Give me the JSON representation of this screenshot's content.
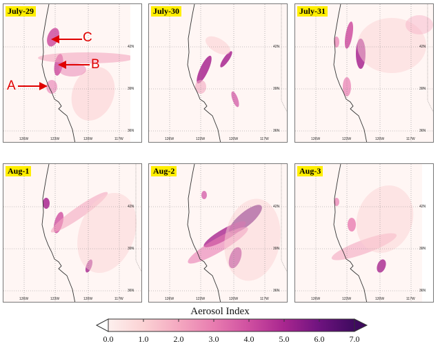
{
  "panels": [
    {
      "date": "July-29"
    },
    {
      "date": "July-30"
    },
    {
      "date": "July-31"
    },
    {
      "date": "Aug-1"
    },
    {
      "date": "Aug-2"
    },
    {
      "date": "Aug-3"
    }
  ],
  "lat_labels": [
    "42N",
    "39N",
    "36N"
  ],
  "lon_labels": [
    "126W",
    "123W",
    "120W",
    "117W"
  ],
  "annotations": {
    "a": "A",
    "b": "B",
    "c": "C"
  },
  "colorbar": {
    "title": "Aerosol Index",
    "ticks": [
      "0.0",
      "1.0",
      "2.0",
      "3.0",
      "4.0",
      "5.0",
      "6.0",
      "7.0"
    ],
    "colors": [
      "#fdf0ee",
      "#fbd2d4",
      "#f4a8c0",
      "#e87cb0",
      "#cf4fa0",
      "#a8268f",
      "#6e137f",
      "#3e0a5e"
    ]
  }
}
